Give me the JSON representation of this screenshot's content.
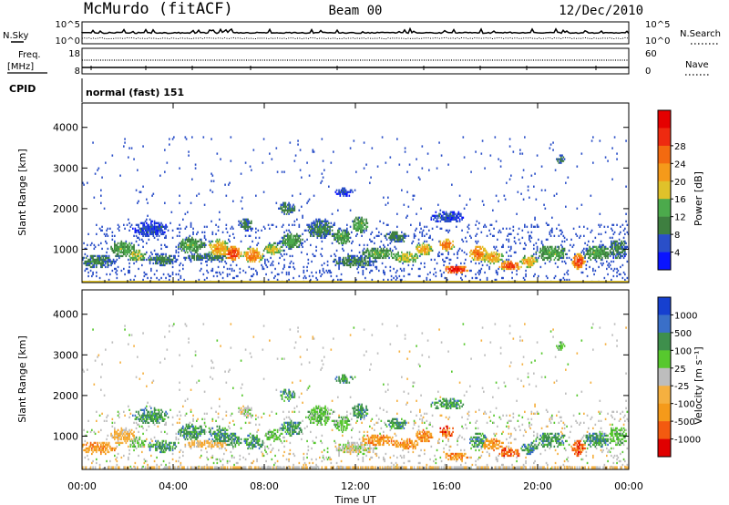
{
  "header": {
    "station": "McMurdo (fitACF)",
    "beam": "Beam 00",
    "date": "12/Dec/2010"
  },
  "noise_panel": {
    "left_label": "N.Sky",
    "right_label": "N.Search",
    "left_ticks": [
      "10^5",
      "10^0"
    ],
    "right_ticks": [
      "10^5",
      "10^0"
    ]
  },
  "freq_panel": {
    "left_label_1": "Freq.",
    "left_label_2": "[MHz]",
    "right_label": "Nave",
    "left_ticks": [
      "18",
      "8"
    ],
    "right_ticks": [
      "60",
      "0"
    ]
  },
  "cpid": {
    "label": "CPID",
    "value": "normal (fast) 151"
  },
  "colors": {
    "power": [
      "#0a14ff",
      "#2a4fc8",
      "#3e7f40",
      "#4caa4c",
      "#e0c22a",
      "#f59a1a",
      "#f36a10",
      "#ee2a10",
      "#e50000"
    ],
    "velocity": [
      "#e00000",
      "#f35a10",
      "#f59a1a",
      "#f5b040",
      "#bdbdbd",
      "#57c82e",
      "#3e8f4c",
      "#3a6fc8",
      "#1640d0"
    ]
  },
  "chart_data": [
    {
      "type": "heatmap",
      "name": "Power",
      "xlabel": "",
      "ylabel": "Slant Range [km]",
      "xlim_hours": [
        0,
        24
      ],
      "ylim": [
        180,
        4600
      ],
      "y_ticks": [
        "1000",
        "2000",
        "3000",
        "4000"
      ],
      "x_ticks": [
        "00:00",
        "04:00",
        "08:00",
        "12:00",
        "16:00",
        "20:00",
        "00:00"
      ],
      "colorbar_label": "Power [dB]",
      "colorbar_ticks": [
        "4",
        "8",
        "12",
        "16",
        "20",
        "24",
        "28"
      ]
    },
    {
      "type": "heatmap",
      "name": "Velocity",
      "xlabel": "Time UT",
      "ylabel": "Slant Range [km]",
      "xlim_hours": [
        0,
        24
      ],
      "ylim": [
        180,
        4600
      ],
      "y_ticks": [
        "1000",
        "2000",
        "3000",
        "4000"
      ],
      "x_ticks": [
        "00:00",
        "04:00",
        "08:00",
        "12:00",
        "16:00",
        "20:00",
        "00:00"
      ],
      "colorbar_label": "Velocity [m s⁻¹]",
      "colorbar_ticks": [
        "1000",
        "500",
        "100",
        "25",
        "-25",
        "-100",
        "-500",
        "-1000"
      ]
    }
  ]
}
